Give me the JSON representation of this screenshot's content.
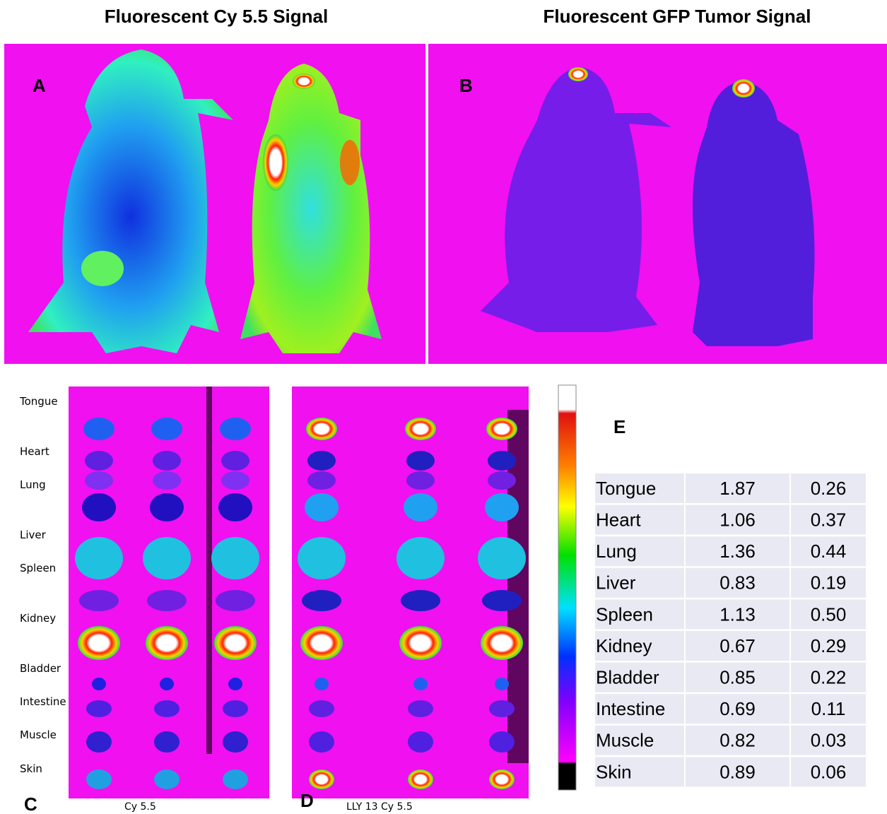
{
  "header": {
    "left_title": "Fluorescent Cy 5.5 Signal",
    "right_title": "Fluorescent GFP Tumor Signal"
  },
  "panels": {
    "a": "A",
    "b": "B",
    "c": "C",
    "d": "D",
    "e": "E"
  },
  "organ_labels": [
    "Tongue",
    "Heart",
    "Lung",
    "Liver",
    "Spleen",
    "Kidney",
    "Bladder",
    "Intestine",
    "Muscle",
    "Skin"
  ],
  "captions": {
    "c": "Cy 5.5",
    "d": "LLY 13 Cy 5.5"
  },
  "table": {
    "rows": [
      [
        "Tongue",
        "1.87",
        "0.26"
      ],
      [
        "Heart",
        "1.06",
        "0.37"
      ],
      [
        "Lung",
        "1.36",
        "0.44"
      ],
      [
        "Liver",
        "0.83",
        "0.19"
      ],
      [
        "Spleen",
        "1.13",
        "0.50"
      ],
      [
        "Kidney",
        "0.67",
        "0.29"
      ],
      [
        "Bladder",
        "0.85",
        "0.22"
      ],
      [
        "Intestine",
        "0.69",
        "0.11"
      ],
      [
        "Muscle",
        "0.82",
        "0.03"
      ],
      [
        "Skin",
        "0.89",
        "0.06"
      ]
    ]
  }
}
